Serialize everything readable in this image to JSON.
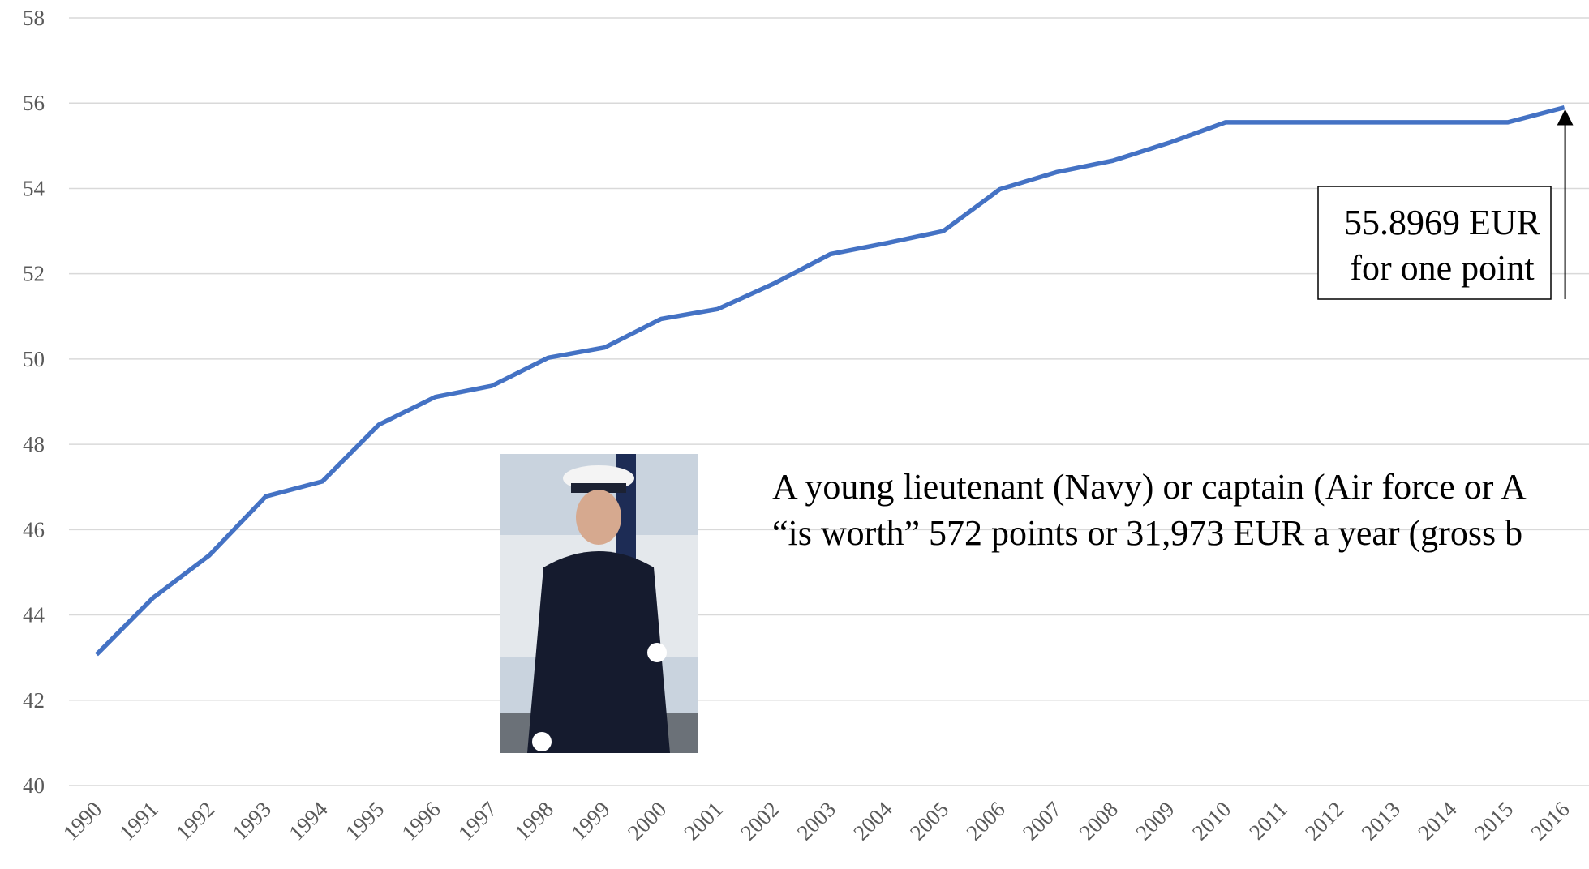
{
  "chart_data": {
    "type": "line",
    "categories": [
      "1990",
      "1991",
      "1992",
      "1993",
      "1994",
      "1995",
      "1996",
      "1997",
      "1998",
      "1999",
      "2000",
      "2001",
      "2002",
      "2003",
      "2004",
      "2005",
      "2006",
      "2007",
      "2008",
      "2009",
      "2010",
      "2011",
      "2012",
      "2013",
      "2014",
      "2015",
      "2016"
    ],
    "series": [
      {
        "color": "#4472c4",
        "values": [
          43.07,
          44.4,
          45.4,
          46.78,
          47.13,
          48.46,
          49.11,
          49.37,
          50.03,
          50.27,
          50.94,
          51.17,
          51.77,
          52.46,
          52.72,
          53.0,
          53.98,
          54.38,
          54.65,
          55.07,
          55.55,
          55.55,
          55.55,
          55.55,
          55.55,
          55.55,
          55.8969
        ]
      }
    ],
    "ylim": [
      40,
      58
    ],
    "yticks": [
      40,
      42,
      44,
      46,
      48,
      50,
      52,
      54,
      56,
      58
    ],
    "grid": true,
    "annotation": [
      "55.8969 EUR",
      "for one point"
    ],
    "note": [
      "A young lieutenant (Navy) or captain (Air force or A",
      "“is worth” 572 points or 31,973 EUR a year (gross b"
    ]
  }
}
